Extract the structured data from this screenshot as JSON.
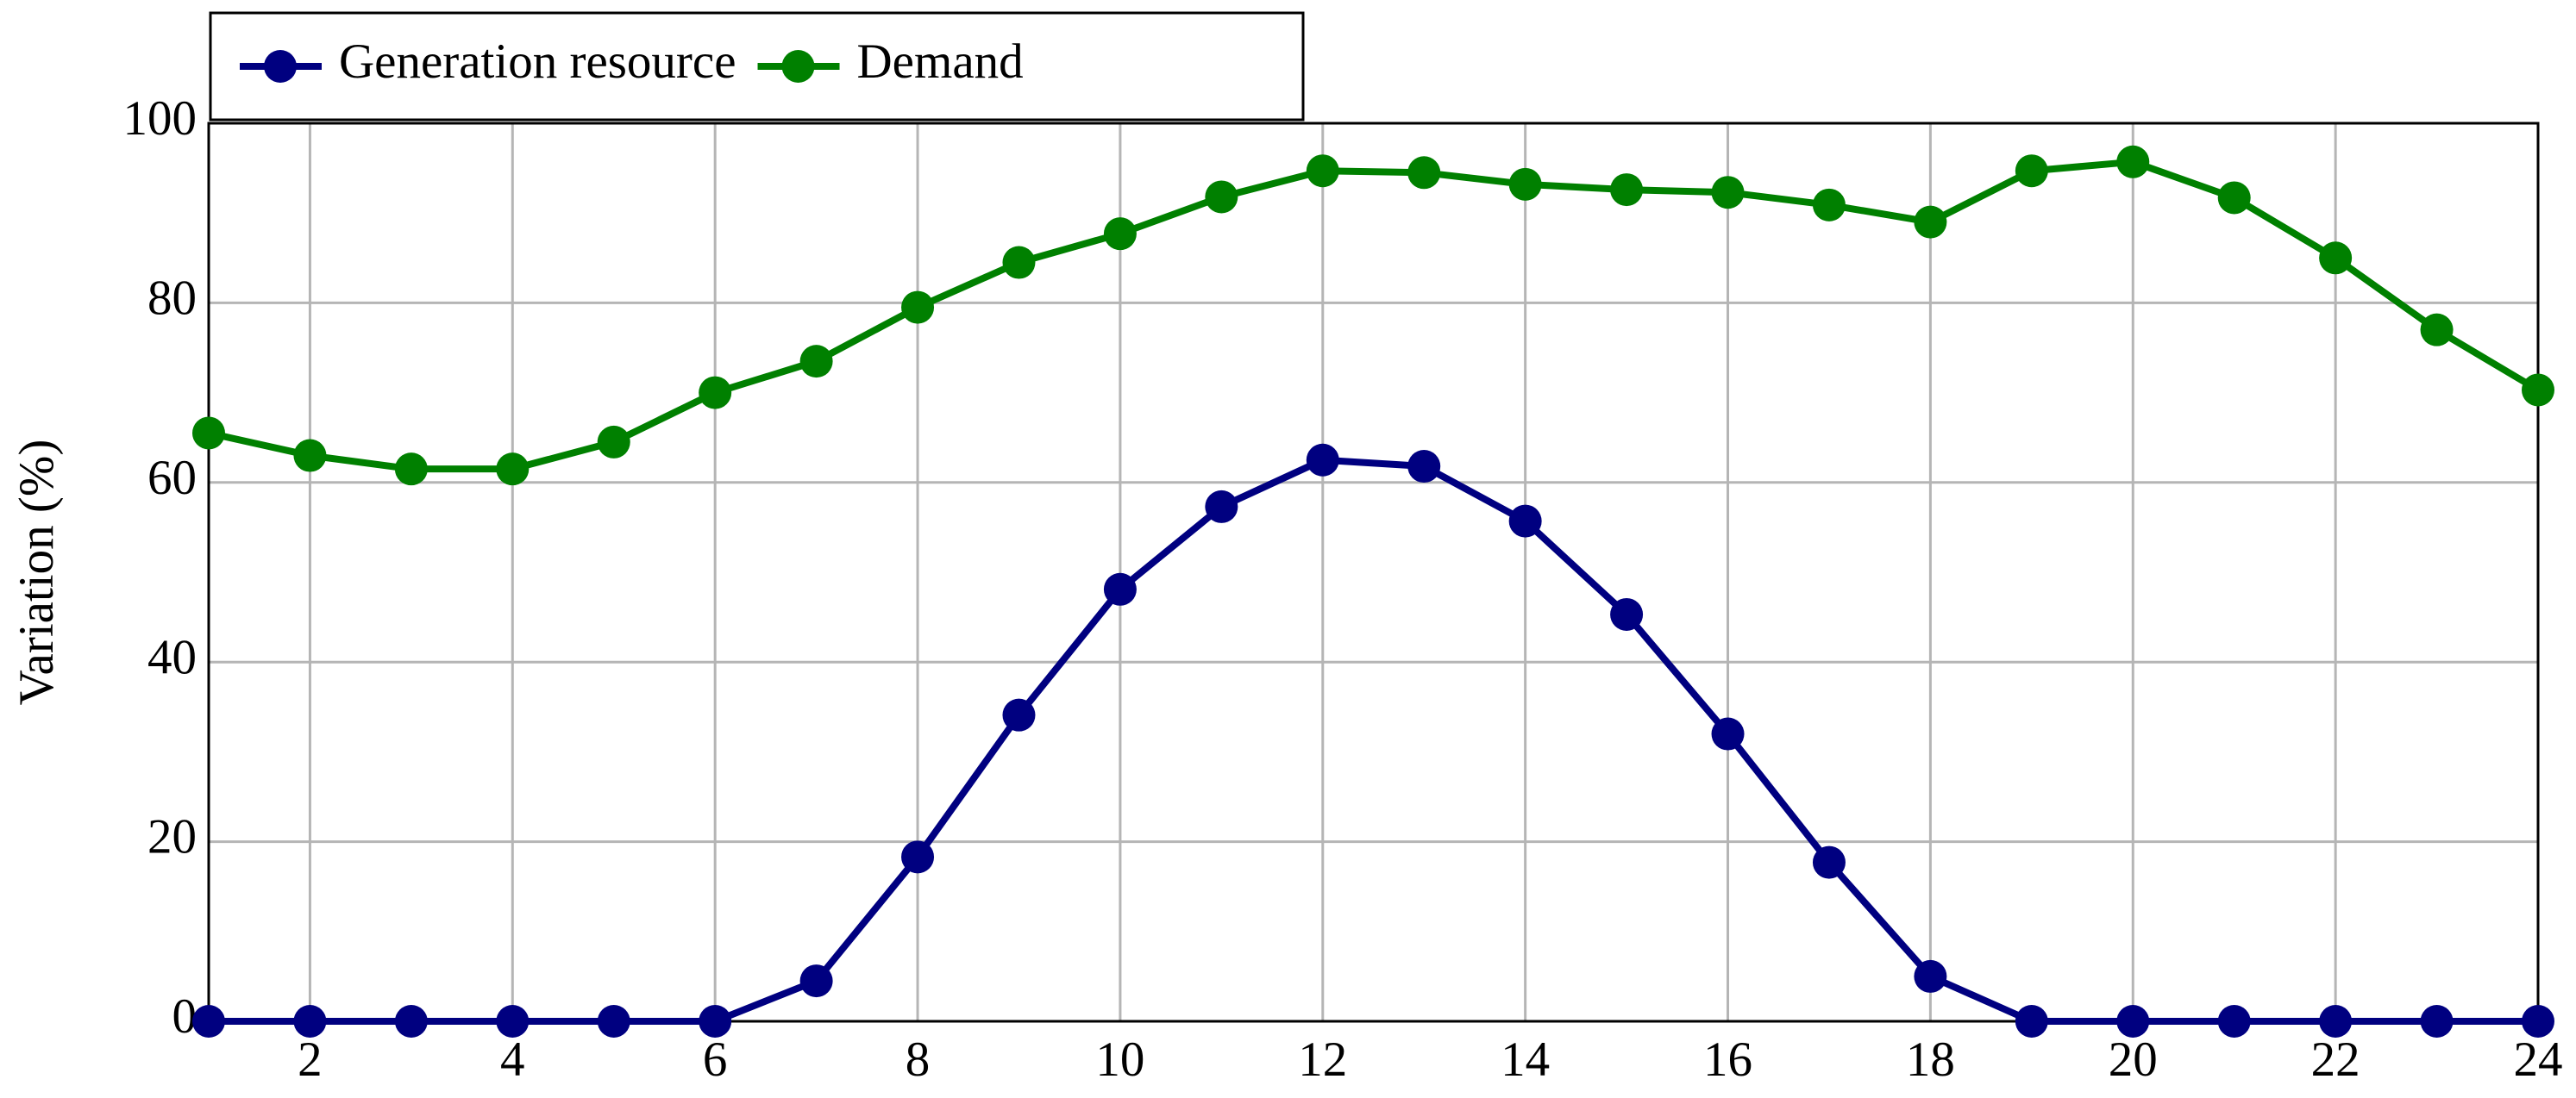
{
  "chart_data": {
    "type": "line",
    "y_label": "Variation (%)",
    "x": [
      1,
      2,
      3,
      4,
      5,
      6,
      7,
      8,
      9,
      10,
      11,
      12,
      13,
      14,
      15,
      16,
      17,
      18,
      19,
      20,
      21,
      22,
      23,
      24
    ],
    "series": [
      {
        "name": "Generation resource",
        "color": "#000080",
        "values": [
          0,
          0,
          0,
          0,
          0,
          0,
          4.5,
          18.3,
          34.1,
          48.1,
          57.3,
          62.5,
          61.8,
          55.7,
          45.3,
          32,
          17.7,
          5,
          0,
          0,
          0,
          0,
          0,
          0
        ]
      },
      {
        "name": "Demand",
        "color": "#008000",
        "values": [
          65.5,
          63,
          61.5,
          61.5,
          64.5,
          70,
          73.5,
          79.5,
          84.5,
          87.7,
          91.8,
          94.7,
          94.5,
          93.2,
          92.6,
          92.3,
          90.9,
          89,
          94.7,
          95.7,
          91.7,
          85,
          77,
          70.3
        ]
      }
    ],
    "xlim": [
      1,
      24
    ],
    "xticks": [
      2,
      4,
      6,
      8,
      10,
      12,
      14,
      16,
      18,
      20,
      22,
      24
    ],
    "ylim": [
      0,
      100
    ],
    "yticks": [
      0,
      20,
      40,
      60,
      80,
      100
    ],
    "grid": true,
    "legend": "top-left"
  }
}
